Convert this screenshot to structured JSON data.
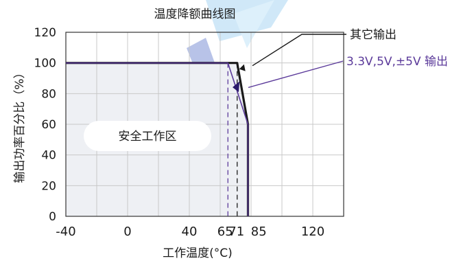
{
  "chart_data": {
    "type": "line",
    "title": "温度降额曲线图",
    "xlabel": "工作温度(°C)",
    "ylabel": "输出功率百分比（%）",
    "xlim": [
      -40,
      140
    ],
    "ylim": [
      0,
      120
    ],
    "x_ticks": [
      {
        "value": -40,
        "label": "-40"
      },
      {
        "value": 0,
        "label": "0"
      },
      {
        "value": 40,
        "label": "40"
      },
      {
        "value": 65,
        "label": "65"
      },
      {
        "value": 71,
        "label": "71"
      },
      {
        "value": 85,
        "label": "85"
      },
      {
        "value": 120,
        "label": "120"
      }
    ],
    "y_ticks": [
      0,
      20,
      40,
      60,
      80,
      100,
      120
    ],
    "grid": true,
    "series": [
      {
        "name": "其它输出",
        "color": "#1a1a1a",
        "points": [
          [
            -40,
            100
          ],
          [
            71,
            100
          ],
          [
            78,
            60
          ],
          [
            78,
            0
          ]
        ]
      },
      {
        "name": "3.3V,5V,±5V 输出",
        "color": "#5b3a9a",
        "points": [
          [
            -40,
            100
          ],
          [
            65,
            100
          ],
          [
            78,
            60
          ],
          [
            78,
            0
          ]
        ]
      }
    ],
    "reference_lines": [
      {
        "x": 65,
        "color": "#5b3a9a",
        "style": "dashed"
      },
      {
        "x": 71,
        "color": "#1a1a1a",
        "style": "dashed"
      }
    ],
    "safe_zone": {
      "label": "安全工作区",
      "fill": "#eef0f4"
    },
    "legend": {
      "placement": "right"
    }
  }
}
